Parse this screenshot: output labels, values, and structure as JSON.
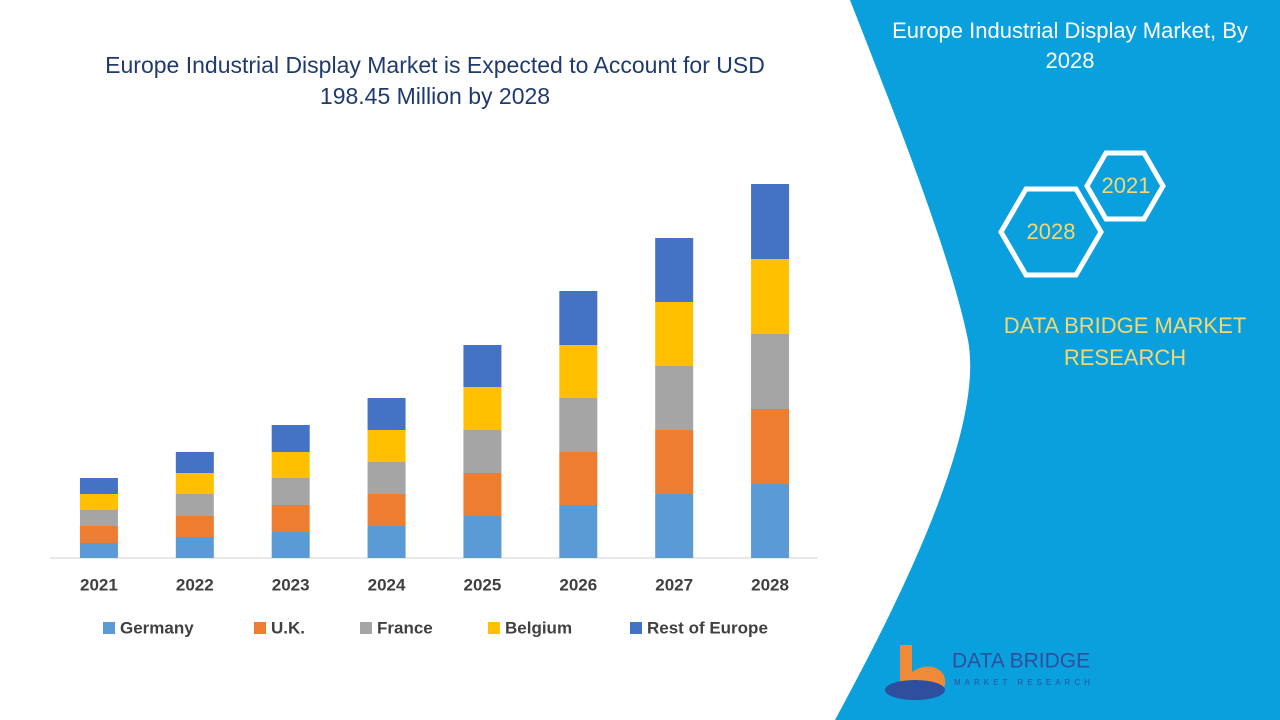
{
  "chart_data": {
    "type": "stacked-bar",
    "title": "Europe Industrial Display Market is Expected to Account for USD 198.45 Million by 2028",
    "categories": [
      "2021",
      "2022",
      "2023",
      "2024",
      "2025",
      "2026",
      "2027",
      "2028"
    ],
    "series": [
      {
        "name": "Germany",
        "color": "#5b9bd5",
        "values": [
          15,
          21,
          26,
          32,
          42,
          53,
          64,
          74
        ]
      },
      {
        "name": "U.K.",
        "color": "#ed7d31",
        "values": [
          17,
          21,
          27,
          32,
          43,
          53,
          64,
          75
        ]
      },
      {
        "name": "France",
        "color": "#a5a5a5",
        "values": [
          16,
          22,
          27,
          32,
          43,
          54,
          64,
          75
        ]
      },
      {
        "name": "Belgium",
        "color": "#ffc000",
        "values": [
          16,
          21,
          26,
          32,
          43,
          53,
          64,
          75
        ]
      },
      {
        "name": "Rest of Europe",
        "color": "#4472c4",
        "values": [
          16,
          21,
          27,
          32,
          42,
          54,
          64,
          75
        ]
      }
    ],
    "legend": "bottom"
  },
  "panel": {
    "title": "Europe Industrial Display Market, By 2028",
    "hex_start": "2021",
    "hex_end": "2028",
    "brand": "DATA BRIDGE MARKET RESEARCH",
    "logo_name": "DATA BRIDGE",
    "logo_sub": "MARKET RESEARCH"
  }
}
